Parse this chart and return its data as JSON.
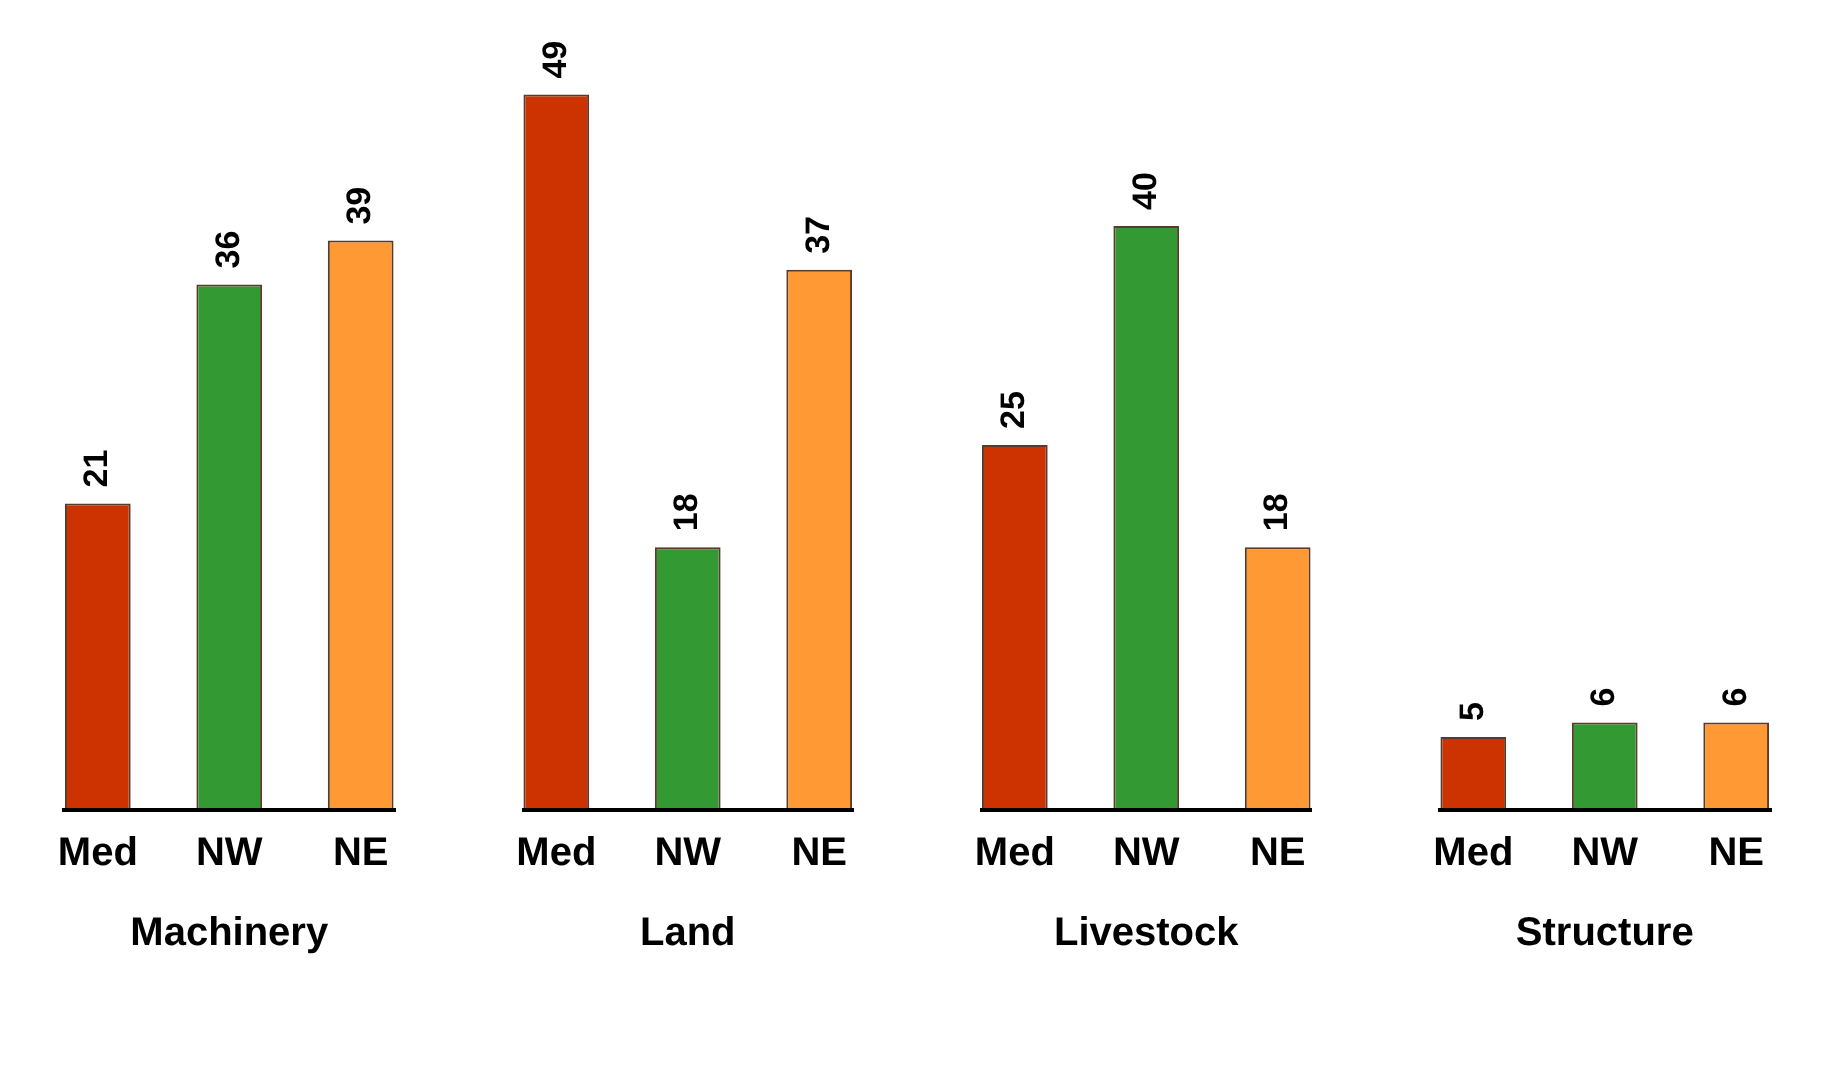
{
  "chart_data": {
    "type": "bar",
    "categories": [
      "Machinery",
      "Land",
      "Livestock",
      "Structure"
    ],
    "series": [
      {
        "name": "Med",
        "color": "#cc3300",
        "values": [
          21,
          49,
          25,
          5
        ]
      },
      {
        "name": "NW",
        "color": "#339933",
        "values": [
          36,
          18,
          40,
          6
        ]
      },
      {
        "name": "NE",
        "color": "#ff9933",
        "values": [
          39,
          37,
          18,
          6
        ]
      }
    ],
    "data_labels": true,
    "legend": false
  }
}
